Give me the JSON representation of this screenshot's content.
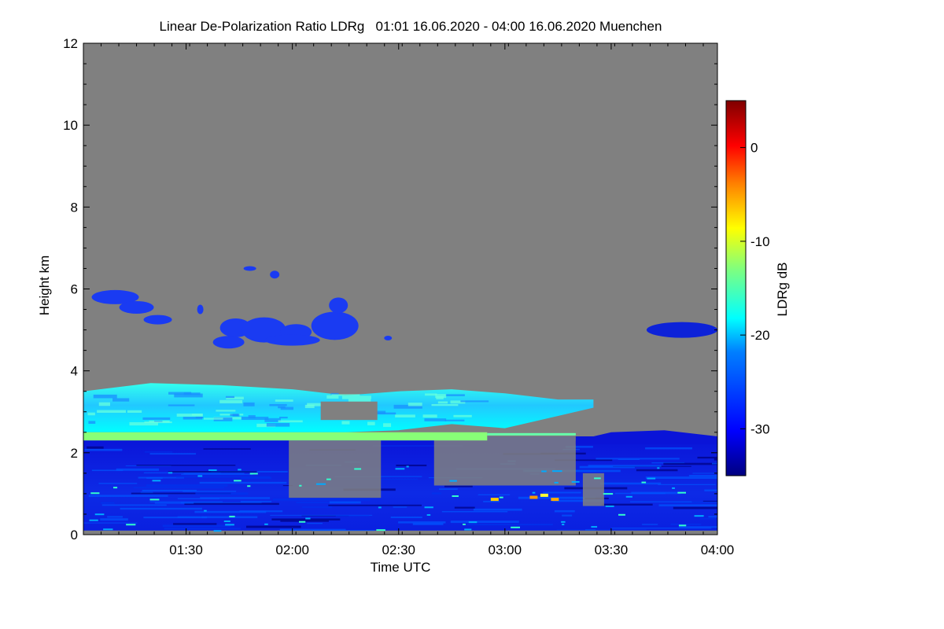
{
  "chart_data": {
    "type": "heatmap",
    "title": "Linear De-Polarization Ratio LDRg   01:01 16.06.2020 - 04:00 16.06.2020 Muenchen",
    "xlabel": "Time UTC",
    "ylabel": "Height km",
    "colorbar_label": "LDRg dB",
    "x_range": [
      "01:01",
      "04:00"
    ],
    "x_ticks": [
      "01:30",
      "02:00",
      "02:30",
      "03:00",
      "03:30",
      "04:00"
    ],
    "ylim": [
      0,
      12
    ],
    "y_ticks": [
      "0",
      "2",
      "4",
      "6",
      "8",
      "10",
      "12"
    ],
    "colorbar_range": [
      -35,
      5
    ],
    "colorbar_ticks": [
      "0",
      "-10",
      "-20",
      "-30"
    ],
    "background_color": "#808080",
    "colormap": [
      "#00007f",
      "#0000ff",
      "#007fff",
      "#00ffff",
      "#7fff7f",
      "#ffff00",
      "#ff7f00",
      "#ff0000",
      "#7f0000"
    ],
    "features": [
      {
        "layer": "low-level echo",
        "time": "01:01-04:00",
        "height_km": [
          0.1,
          2.4
        ],
        "ldr_db": -32
      },
      {
        "layer": "melting/bright band",
        "time": "01:01-02:55",
        "height_km": [
          2.3,
          2.5
        ],
        "ldr_db": -17
      },
      {
        "layer": "mid-level cloud",
        "time": "01:01-03:25",
        "height_km": [
          2.5,
          3.6
        ],
        "ldr_db": -21
      },
      {
        "layer": "upper cloud patches",
        "time": "01:10-02:20",
        "height_km": [
          4.6,
          6.6
        ],
        "ldr_db": -29
      },
      {
        "layer": "upper cloud patch",
        "time": "03:40-04:00",
        "height_km": [
          4.8,
          5.3
        ],
        "ldr_db": -31
      }
    ]
  }
}
